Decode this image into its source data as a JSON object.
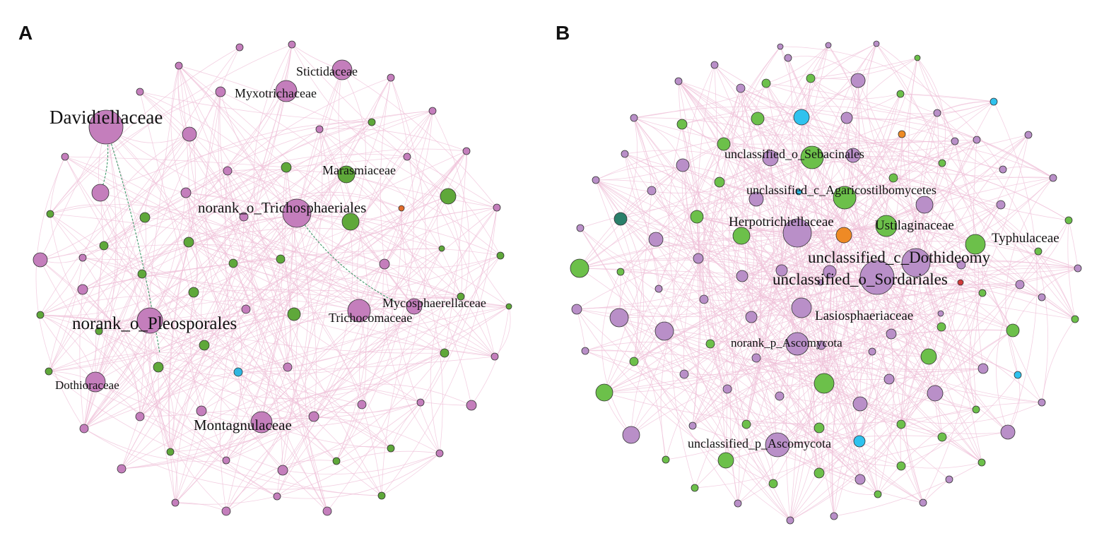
{
  "panels": [
    {
      "label": "A",
      "colors": {
        "purple": "#c47ebc",
        "green": "#5fa83a",
        "blue": "#2fb6e0",
        "orange": "#e06a2a",
        "edge": "#efc0d8",
        "negative_edge": "#3f9a6a"
      },
      "node_labels": [
        "Stictidaceae",
        "Myxotrichaceae",
        "Davidiellaceae",
        "Marasmiaceae",
        "norank_o_Trichosphaeriales",
        "Mycosphaerellaceae",
        "Trichocomaceae",
        "norank_o_Pleosporales",
        "Dothioraceae",
        "Montagnulaceae"
      ]
    },
    {
      "label": "B",
      "colors": {
        "purple": "#b98fc8",
        "green": "#6cc04a",
        "blue": "#2fc2ee",
        "orange": "#ee8a25",
        "teal": "#2a7f6a",
        "red": "#d13a3a",
        "edge": "#efc0d8"
      },
      "node_labels": [
        "unclassified_o_Sebacinales",
        "unclassified_c_Agaricostilbomycetes",
        "Herpotrichiellaceae",
        "Ustilaginaceae",
        "Typhulaceae",
        "unclassified_c_Dothideomy",
        "unclassified_o_Sordariales",
        "Lasiosphaeriaceae",
        "norank_p_Ascomycota",
        "unclassified_p_Ascomycota"
      ]
    }
  ]
}
